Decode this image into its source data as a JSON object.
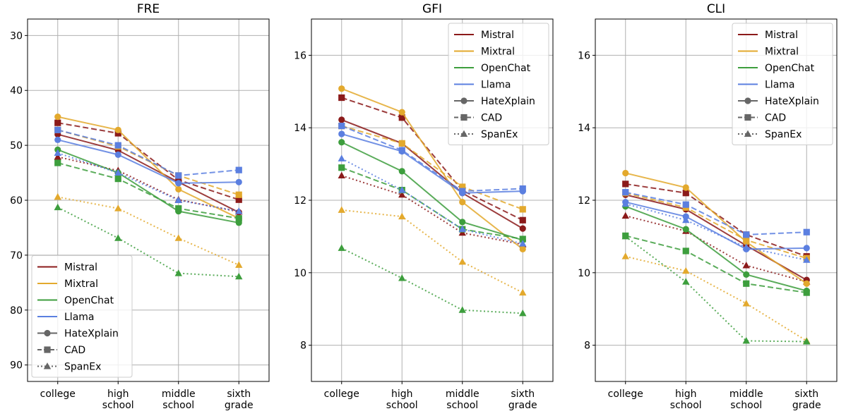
{
  "chart_data": [
    {
      "type": "line",
      "title": "FRE",
      "categories": [
        "college",
        "high school",
        "middle school",
        "sixth grade"
      ],
      "ylim": [
        93,
        27
      ],
      "inverted_y": true,
      "yticks": [
        30,
        40,
        50,
        60,
        70,
        80,
        90
      ],
      "grid": true,
      "legend_position": "lower-left",
      "series": [
        {
          "model": "Mistral",
          "dataset": "HateXplain",
          "values": [
            48.0,
            50.9,
            56.7,
            62.2
          ]
        },
        {
          "model": "Mistral",
          "dataset": "CAD",
          "values": [
            45.9,
            47.8,
            56.3,
            59.9
          ]
        },
        {
          "model": "Mistral",
          "dataset": "SpanEx",
          "values": [
            52.1,
            54.6,
            59.9,
            62.1
          ]
        },
        {
          "model": "Mixtral",
          "dataset": "HateXplain",
          "values": [
            44.8,
            47.2,
            58.0,
            63.3
          ]
        },
        {
          "model": "Mixtral",
          "dataset": "CAD",
          "values": [
            47.2,
            50.2,
            55.5,
            59.0
          ]
        },
        {
          "model": "Mixtral",
          "dataset": "SpanEx",
          "values": [
            59.4,
            61.5,
            66.9,
            71.8
          ]
        },
        {
          "model": "OpenChat",
          "dataset": "HateXplain",
          "values": [
            50.8,
            55.0,
            62.0,
            64.1
          ]
        },
        {
          "model": "OpenChat",
          "dataset": "CAD",
          "values": [
            53.2,
            56.1,
            61.5,
            63.3
          ]
        },
        {
          "model": "OpenChat",
          "dataset": "SpanEx",
          "values": [
            61.3,
            66.9,
            73.3,
            73.9
          ]
        },
        {
          "model": "Llama",
          "dataset": "HateXplain",
          "values": [
            49.0,
            51.7,
            56.9,
            56.7
          ]
        },
        {
          "model": "Llama",
          "dataset": "CAD",
          "values": [
            47.2,
            50.0,
            55.5,
            54.5
          ]
        },
        {
          "model": "Llama",
          "dataset": "SpanEx",
          "values": [
            51.4,
            55.0,
            60.0,
            62.0
          ]
        }
      ]
    },
    {
      "type": "line",
      "title": "GFI",
      "categories": [
        "college",
        "high school",
        "middle school",
        "sixth grade"
      ],
      "ylim": [
        7.0,
        17.0
      ],
      "yticks": [
        8,
        10,
        12,
        14,
        16
      ],
      "grid": true,
      "legend_position": "upper-right",
      "series": [
        {
          "model": "Mistral",
          "dataset": "HateXplain",
          "values": [
            14.22,
            13.57,
            12.2,
            11.22
          ]
        },
        {
          "model": "Mistral",
          "dataset": "CAD",
          "values": [
            14.83,
            14.28,
            12.27,
            11.45
          ]
        },
        {
          "model": "Mistral",
          "dataset": "SpanEx",
          "values": [
            12.68,
            12.15,
            11.1,
            10.78
          ]
        },
        {
          "model": "Mixtral",
          "dataset": "HateXplain",
          "values": [
            15.08,
            14.43,
            11.95,
            10.65
          ]
        },
        {
          "model": "Mixtral",
          "dataset": "CAD",
          "values": [
            14.05,
            13.57,
            12.37,
            11.75
          ]
        },
        {
          "model": "Mixtral",
          "dataset": "SpanEx",
          "values": [
            11.73,
            11.55,
            10.3,
            9.45
          ]
        },
        {
          "model": "OpenChat",
          "dataset": "HateXplain",
          "values": [
            13.6,
            12.8,
            11.4,
            10.9
          ]
        },
        {
          "model": "OpenChat",
          "dataset": "CAD",
          "values": [
            12.9,
            12.28,
            11.2,
            10.93
          ]
        },
        {
          "model": "OpenChat",
          "dataset": "SpanEx",
          "values": [
            10.68,
            9.85,
            8.97,
            8.88
          ]
        },
        {
          "model": "Llama",
          "dataset": "HateXplain",
          "values": [
            13.83,
            13.35,
            12.2,
            12.25
          ]
        },
        {
          "model": "Llama",
          "dataset": "CAD",
          "values": [
            14.05,
            13.38,
            12.25,
            12.32
          ]
        },
        {
          "model": "Llama",
          "dataset": "SpanEx",
          "values": [
            13.15,
            12.28,
            11.2,
            10.8
          ]
        }
      ]
    },
    {
      "type": "line",
      "title": "CLI",
      "categories": [
        "college",
        "high school",
        "middle school",
        "sixth grade"
      ],
      "ylim": [
        7.0,
        17.0
      ],
      "yticks": [
        8,
        10,
        12,
        14,
        16
      ],
      "grid": true,
      "legend_position": "upper-right",
      "series": [
        {
          "model": "Mistral",
          "dataset": "HateXplain",
          "values": [
            12.15,
            11.75,
            10.75,
            9.8
          ]
        },
        {
          "model": "Mistral",
          "dataset": "CAD",
          "values": [
            12.45,
            12.2,
            11.05,
            10.45
          ]
        },
        {
          "model": "Mistral",
          "dataset": "SpanEx",
          "values": [
            11.57,
            11.15,
            10.2,
            9.75
          ]
        },
        {
          "model": "Mixtral",
          "dataset": "HateXplain",
          "values": [
            12.75,
            12.35,
            10.85,
            9.7
          ]
        },
        {
          "model": "Mixtral",
          "dataset": "CAD",
          "values": [
            12.2,
            11.8,
            10.9,
            10.4
          ]
        },
        {
          "model": "Mixtral",
          "dataset": "SpanEx",
          "values": [
            10.45,
            10.05,
            9.15,
            8.12
          ]
        },
        {
          "model": "OpenChat",
          "dataset": "HateXplain",
          "values": [
            11.83,
            11.2,
            9.95,
            9.5
          ]
        },
        {
          "model": "OpenChat",
          "dataset": "CAD",
          "values": [
            11.02,
            10.6,
            9.7,
            9.45
          ]
        },
        {
          "model": "OpenChat",
          "dataset": "SpanEx",
          "values": [
            11.0,
            9.75,
            8.12,
            8.1
          ]
        },
        {
          "model": "Llama",
          "dataset": "HateXplain",
          "values": [
            11.95,
            11.55,
            10.65,
            10.68
          ]
        },
        {
          "model": "Llama",
          "dataset": "CAD",
          "values": [
            12.22,
            11.88,
            11.05,
            11.12
          ]
        },
        {
          "model": "Llama",
          "dataset": "SpanEx",
          "values": [
            11.9,
            11.45,
            10.7,
            10.35
          ]
        }
      ]
    }
  ],
  "legend": {
    "models": [
      {
        "name": "Mistral",
        "color": "#8b1a1a"
      },
      {
        "name": "Mixtral",
        "color": "#e3a92d"
      },
      {
        "name": "OpenChat",
        "color": "#3d9e3d"
      },
      {
        "name": "Llama",
        "color": "#5b7fe0"
      }
    ],
    "datasets": [
      {
        "name": "HateXplain",
        "marker": "circle",
        "line": "solid"
      },
      {
        "name": "CAD",
        "marker": "square",
        "line": "dashed"
      },
      {
        "name": "SpanEx",
        "marker": "triangle",
        "line": "dotted"
      }
    ]
  }
}
